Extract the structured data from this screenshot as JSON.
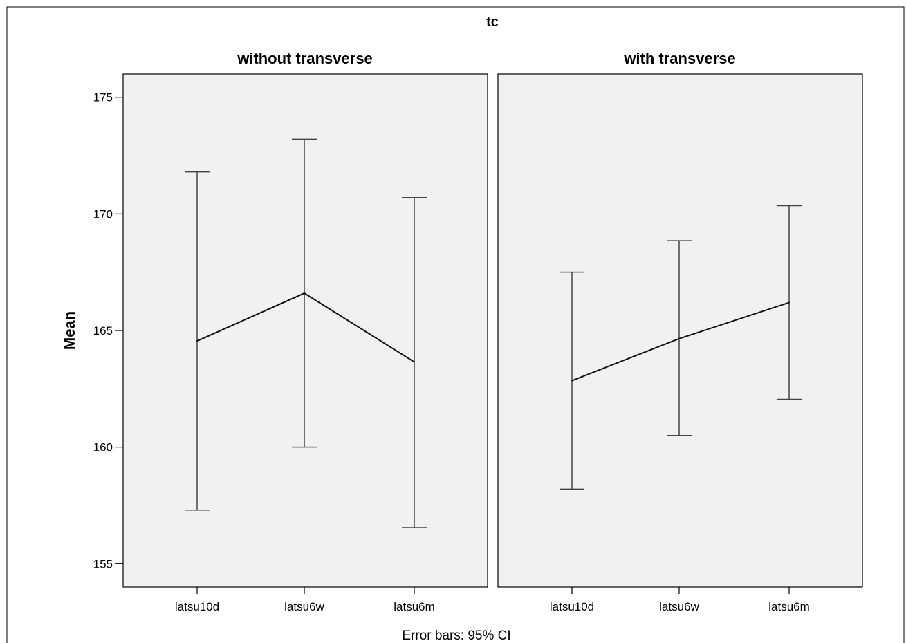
{
  "chart_data": {
    "type": "line",
    "title": "tc",
    "ylabel": "Mean",
    "footnote": "Error bars: 95% CI",
    "categories": [
      "latsu10d",
      "latsu6w",
      "latsu6m"
    ],
    "yticks": [
      155,
      160,
      165,
      170,
      175
    ],
    "ylim": [
      154,
      176
    ],
    "grid": false,
    "panels": [
      {
        "title": "without transverse",
        "mean": [
          164.55,
          166.6,
          163.65
        ],
        "ci_low": [
          157.3,
          160.0,
          156.55
        ],
        "ci_high": [
          171.8,
          173.2,
          170.7
        ]
      },
      {
        "title": "with transverse",
        "mean": [
          162.85,
          164.65,
          166.2
        ],
        "ci_low": [
          158.2,
          160.5,
          162.05
        ],
        "ci_high": [
          167.5,
          168.85,
          170.35
        ]
      }
    ]
  }
}
